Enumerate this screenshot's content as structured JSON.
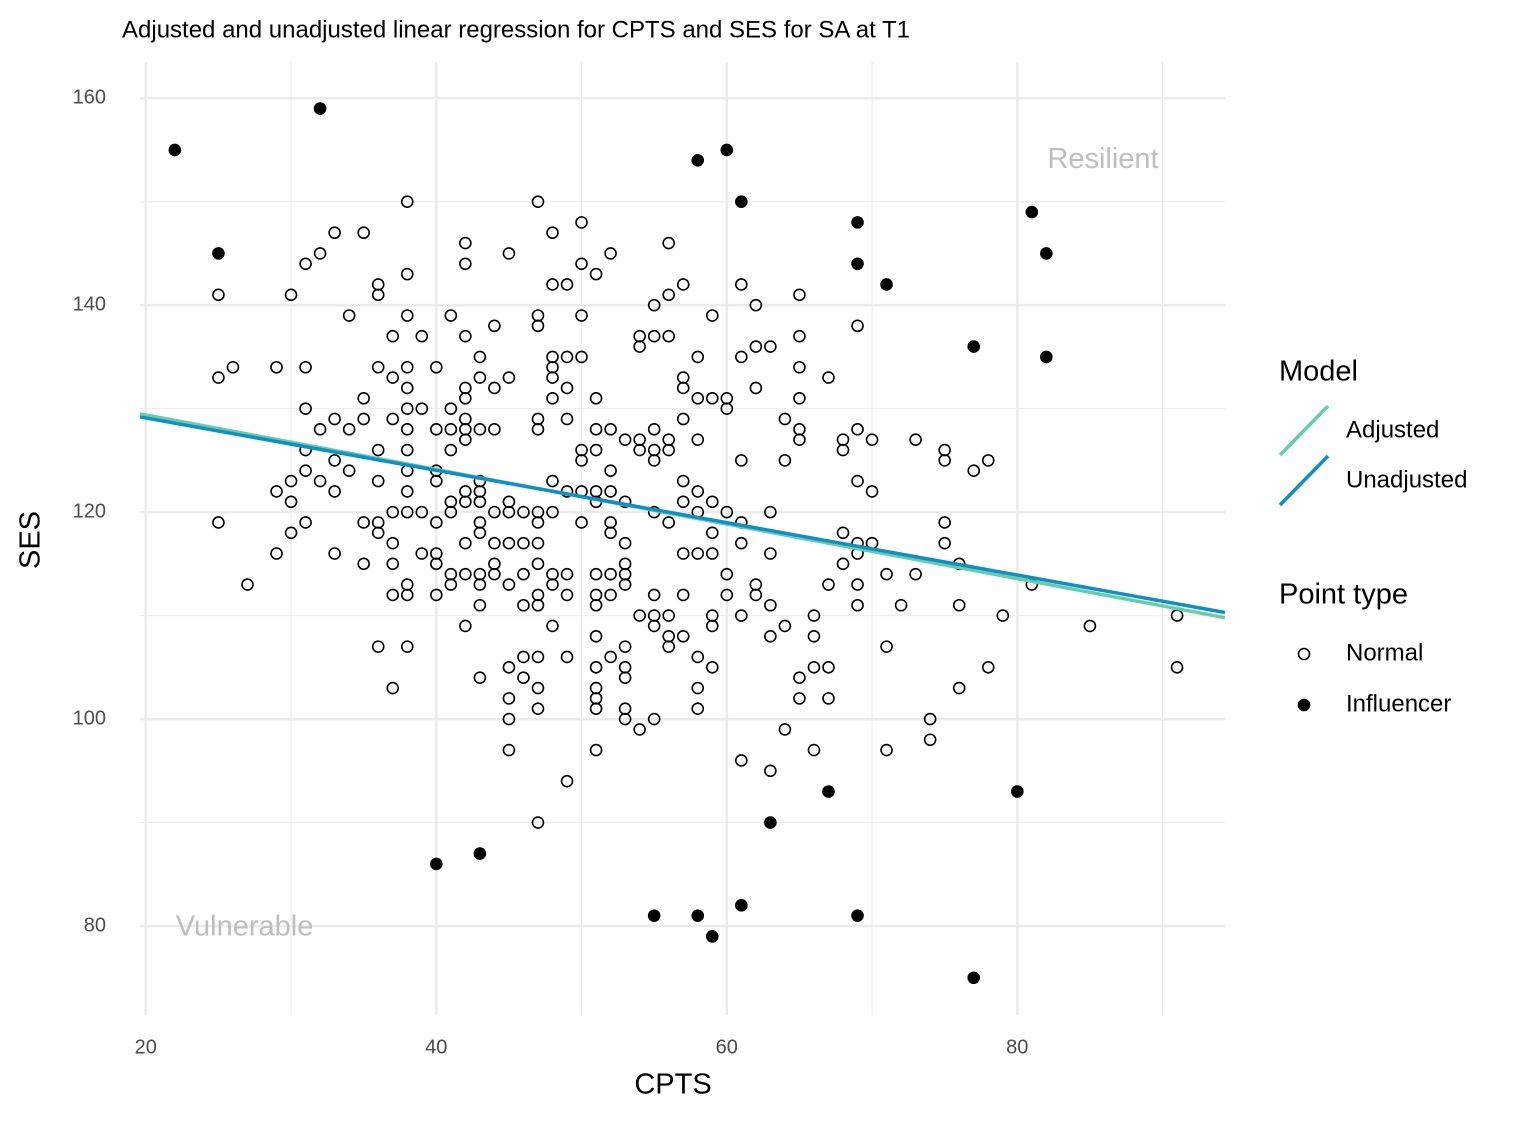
{
  "chart_data": {
    "type": "scatter",
    "title": "Adjusted and unadjusted linear regression for CPTS and SES for SA at T1",
    "x_label": "CPTS",
    "y_label": "SES",
    "xlim": [
      19.6,
      94.3
    ],
    "ylim": [
      71.4,
      163.5
    ],
    "xticks": [
      20,
      40,
      60,
      80
    ],
    "yticks": [
      80,
      100,
      120,
      140,
      160
    ],
    "x_minor_ticks": [
      30,
      50,
      70,
      90
    ],
    "y_minor_ticks": [
      90,
      110,
      130,
      150
    ],
    "grid": true,
    "legend_titles": {
      "line": "Model",
      "point": "Point type"
    },
    "annotations": [
      {
        "text": "Resilient",
        "x": 85.9,
        "y": 154,
        "color": "#bebebe"
      },
      {
        "text": "Vulnerable",
        "x": 26.8,
        "y": 79.8,
        "color": "#bebebe"
      }
    ],
    "series": [
      {
        "name": "Normal",
        "mark": "point",
        "color": "#000000",
        "filled": false,
        "x": [
          25,
          25,
          25,
          26,
          27,
          29,
          29,
          29,
          30,
          30,
          30,
          30,
          31,
          31,
          31,
          31,
          31,
          31,
          32,
          32,
          32,
          33,
          33,
          33,
          33,
          33,
          34,
          34,
          34,
          35,
          35,
          35,
          35,
          35,
          36,
          36,
          36,
          36,
          36,
          36,
          36,
          36,
          37,
          37,
          37,
          37,
          37,
          37,
          37,
          37,
          38,
          38,
          38,
          38,
          38,
          38,
          38,
          38,
          38,
          38,
          38,
          38,
          38,
          38,
          39,
          39,
          39,
          39,
          40,
          40,
          40,
          40,
          40,
          40,
          40,
          40,
          41,
          41,
          41,
          41,
          41,
          41,
          41,
          41,
          42,
          42,
          42,
          42,
          42,
          42,
          42,
          42,
          42,
          42,
          42,
          42,
          42,
          43,
          43,
          43,
          43,
          43,
          43,
          43,
          43,
          43,
          43,
          43,
          43,
          44,
          44,
          44,
          44,
          44,
          44,
          44,
          45,
          45,
          45,
          45,
          45,
          45,
          45,
          45,
          45,
          45,
          46,
          46,
          46,
          46,
          46,
          46,
          47,
          47,
          47,
          47,
          47,
          47,
          47,
          47,
          47,
          47,
          47,
          47,
          47,
          47,
          47,
          48,
          48,
          48,
          48,
          48,
          48,
          48,
          48,
          48,
          48,
          48,
          49,
          49,
          49,
          49,
          49,
          49,
          49,
          49,
          49,
          50,
          50,
          50,
          50,
          50,
          50,
          50,
          50,
          51,
          51,
          51,
          51,
          51,
          51,
          51,
          51,
          51,
          51,
          51,
          51,
          51,
          51,
          51,
          52,
          52,
          52,
          52,
          52,
          52,
          52,
          52,
          52,
          53,
          53,
          53,
          53,
          53,
          53,
          53,
          53,
          53,
          53,
          53,
          54,
          54,
          54,
          54,
          54,
          54,
          55,
          55,
          55,
          55,
          55,
          55,
          55,
          55,
          55,
          55,
          56,
          56,
          56,
          56,
          56,
          56,
          56,
          56,
          56,
          57,
          57,
          57,
          57,
          57,
          57,
          57,
          57,
          57,
          58,
          58,
          58,
          58,
          58,
          58,
          58,
          58,
          58,
          59,
          59,
          59,
          59,
          59,
          59,
          59,
          59,
          60,
          60,
          60,
          60,
          60,
          61,
          61,
          61,
          61,
          61,
          61,
          61,
          62,
          62,
          62,
          62,
          62,
          63,
          63,
          63,
          63,
          63,
          63,
          64,
          64,
          64,
          64,
          65,
          65,
          65,
          65,
          65,
          65,
          65,
          65,
          66,
          66,
          66,
          66,
          67,
          67,
          67,
          67,
          68,
          68,
          68,
          68,
          69,
          69,
          69,
          69,
          69,
          69,
          69,
          70,
          70,
          70,
          71,
          71,
          71,
          72,
          73,
          73,
          74,
          74,
          75,
          75,
          75,
          75,
          76,
          76,
          76,
          77,
          78,
          78,
          79,
          81,
          85,
          91,
          91
        ],
        "values": [
          141,
          133,
          119,
          134,
          113,
          134,
          122,
          116,
          141,
          123,
          121,
          118,
          144,
          134,
          130,
          126,
          124,
          119,
          145,
          128,
          123,
          147,
          129,
          125,
          122,
          116,
          139,
          128,
          124,
          147,
          131,
          129,
          119,
          115,
          142,
          141,
          134,
          126,
          123,
          119,
          118,
          107,
          137,
          133,
          129,
          120,
          117,
          115,
          112,
          103,
          150,
          143,
          139,
          134,
          132,
          130,
          128,
          126,
          124,
          122,
          120,
          113,
          112,
          107,
          137,
          130,
          120,
          116,
          134,
          128,
          124,
          123,
          119,
          116,
          115,
          112,
          139,
          130,
          128,
          126,
          121,
          120,
          114,
          113,
          146,
          144,
          137,
          132,
          131,
          129,
          128,
          127,
          122,
          121,
          117,
          114,
          109,
          135,
          133,
          128,
          123,
          122,
          121,
          119,
          118,
          114,
          113,
          111,
          104,
          138,
          132,
          128,
          120,
          117,
          115,
          114,
          145,
          133,
          121,
          120,
          117,
          113,
          105,
          102,
          100,
          97,
          120,
          117,
          114,
          111,
          106,
          104,
          150,
          139,
          138,
          129,
          128,
          120,
          119,
          117,
          115,
          112,
          111,
          106,
          103,
          101,
          90,
          147,
          142,
          135,
          134,
          133,
          131,
          123,
          120,
          114,
          113,
          109,
          142,
          135,
          132,
          129,
          122,
          114,
          112,
          106,
          94,
          148,
          144,
          139,
          135,
          126,
          125,
          122,
          119,
          143,
          131,
          128,
          126,
          122,
          121,
          114,
          112,
          111,
          108,
          105,
          103,
          102,
          101,
          97,
          145,
          128,
          124,
          122,
          119,
          118,
          114,
          112,
          106,
          127,
          121,
          117,
          115,
          114,
          113,
          107,
          105,
          104,
          101,
          100,
          137,
          136,
          127,
          126,
          110,
          99,
          140,
          137,
          128,
          126,
          125,
          120,
          112,
          110,
          109,
          100,
          146,
          141,
          137,
          127,
          126,
          119,
          110,
          108,
          107,
          142,
          133,
          132,
          129,
          123,
          121,
          116,
          112,
          108,
          135,
          131,
          127,
          122,
          120,
          116,
          106,
          103,
          101,
          139,
          131,
          121,
          118,
          116,
          110,
          109,
          105,
          131,
          130,
          120,
          114,
          112,
          142,
          135,
          125,
          119,
          117,
          110,
          96,
          140,
          136,
          132,
          113,
          112,
          136,
          120,
          116,
          111,
          108,
          95,
          129,
          125,
          109,
          99,
          141,
          137,
          134,
          131,
          128,
          127,
          104,
          102,
          110,
          108,
          105,
          97,
          133,
          113,
          105,
          102,
          127,
          126,
          118,
          115,
          138,
          128,
          123,
          117,
          116,
          113,
          111,
          127,
          122,
          117,
          114,
          107,
          97,
          111,
          127,
          114,
          100,
          98,
          126,
          125,
          119,
          117,
          115,
          111,
          103,
          124,
          125,
          105,
          110,
          113,
          109,
          110,
          105
        ]
      },
      {
        "name": "Influencer",
        "mark": "point",
        "color": "#000000",
        "filled": true,
        "x": [
          22,
          32,
          25,
          58,
          60,
          61,
          69,
          69,
          71,
          81,
          82,
          77,
          82,
          67,
          80,
          63,
          40,
          43,
          55,
          58,
          61,
          59,
          69,
          77
        ],
        "values": [
          155,
          159,
          145,
          154,
          155,
          150,
          148,
          144,
          142,
          149,
          145,
          136,
          135,
          93,
          93,
          90,
          86,
          87,
          81,
          81,
          82,
          79,
          81,
          75
        ]
      },
      {
        "name": "Adjusted",
        "mark": "line",
        "color": "#66cdaa",
        "x": [
          19.6,
          94.3
        ],
        "values": [
          129.5,
          109.8
        ]
      },
      {
        "name": "Unadjusted",
        "mark": "line",
        "color": "#0f8fc6",
        "x": [
          19.6,
          94.3
        ],
        "values": [
          129.2,
          110.3
        ]
      }
    ]
  }
}
